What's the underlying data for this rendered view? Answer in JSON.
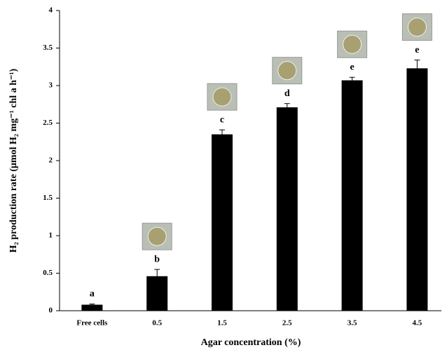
{
  "chart_data": {
    "type": "bar",
    "xlabel": "Agar concentration (%)",
    "ylabel": "H₂ production rate (μmol H₂ mg⁻¹ chl a h⁻¹)",
    "categories": [
      "Free cells",
      "0.5",
      "1.5",
      "2.5",
      "3.5",
      "4.5"
    ],
    "values": [
      0.08,
      0.46,
      2.35,
      2.71,
      3.07,
      3.23
    ],
    "errors": [
      0.01,
      0.09,
      0.06,
      0.05,
      0.04,
      0.11
    ],
    "letters": [
      "a",
      "b",
      "c",
      "d",
      "e",
      "e"
    ],
    "color": "#000000",
    "ylim": [
      0,
      4
    ],
    "yticks": [
      0,
      0.5,
      1,
      1.5,
      2,
      2.5,
      3,
      3.5,
      4
    ],
    "grid": false
  }
}
